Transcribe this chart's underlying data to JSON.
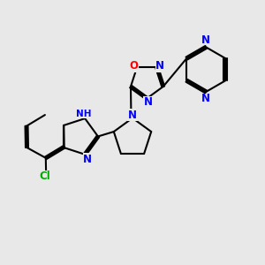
{
  "background_color": "#e8e8e8",
  "bond_color": "#000000",
  "bond_width": 1.5,
  "atom_colors": {
    "N": "#0000ff",
    "O": "#ff0000",
    "Cl": "#00aa00",
    "C": "#000000",
    "H": "#808080"
  },
  "fig_width": 3.0,
  "fig_height": 3.0,
  "dpi": 100
}
